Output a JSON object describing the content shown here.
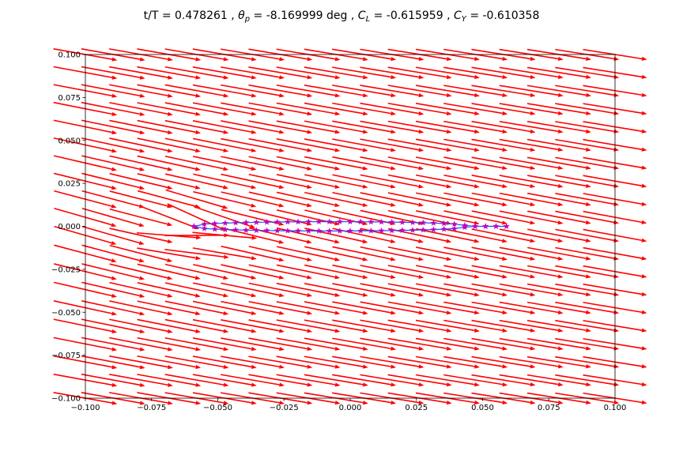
{
  "chart_data": {
    "type": "quiver",
    "title_segments": [
      {
        "text": "t/T = 0.478261 , ",
        "style": "normal"
      },
      {
        "text": "θ",
        "style": "italic"
      },
      {
        "text": "p",
        "style": "italic-sub"
      },
      {
        "text": " = -8.169999 deg , ",
        "style": "normal"
      },
      {
        "text": "C",
        "style": "italic"
      },
      {
        "text": "L",
        "style": "italic-sub"
      },
      {
        "text": " = -0.615959 , ",
        "style": "normal"
      },
      {
        "text": "C",
        "style": "italic"
      },
      {
        "text": "Y",
        "style": "italic-sub"
      },
      {
        "text": " = -0.610358",
        "style": "normal"
      }
    ],
    "xlim": [
      -0.1,
      0.1
    ],
    "ylim": [
      -0.1,
      0.1
    ],
    "xticks": [
      -0.1,
      -0.075,
      -0.05,
      -0.025,
      0.0,
      0.025,
      0.05,
      0.075,
      0.1
    ],
    "xtick_labels": [
      "−0.100",
      "−0.075",
      "−0.050",
      "−0.025",
      "0.000",
      "0.025",
      "0.050",
      "0.075",
      "0.100"
    ],
    "yticks": [
      -0.1,
      -0.075,
      -0.05,
      -0.025,
      0.0,
      0.025,
      0.05,
      0.075,
      0.1
    ],
    "ytick_labels": [
      "−0.100",
      "−0.075",
      "−0.050",
      "−0.025",
      "0.000",
      "0.025",
      "0.050",
      "0.075",
      "0.100"
    ],
    "grid": false,
    "vector_field": {
      "color": "#ff0000",
      "x_range": [
        -0.1,
        0.1
      ],
      "y_range": [
        -0.1,
        0.1
      ],
      "nx": 20,
      "ny": 20,
      "freestream": {
        "u": 1.0,
        "v": -0.15
      },
      "arrow_length_data": 0.0072
    },
    "airfoil": {
      "line_color": "#1f4fff",
      "marker_color": "#c000c0",
      "marker": "star",
      "x_le": -0.059,
      "x_te": 0.059,
      "half_thickness": 0.0027,
      "markers_per_side": 31
    }
  }
}
